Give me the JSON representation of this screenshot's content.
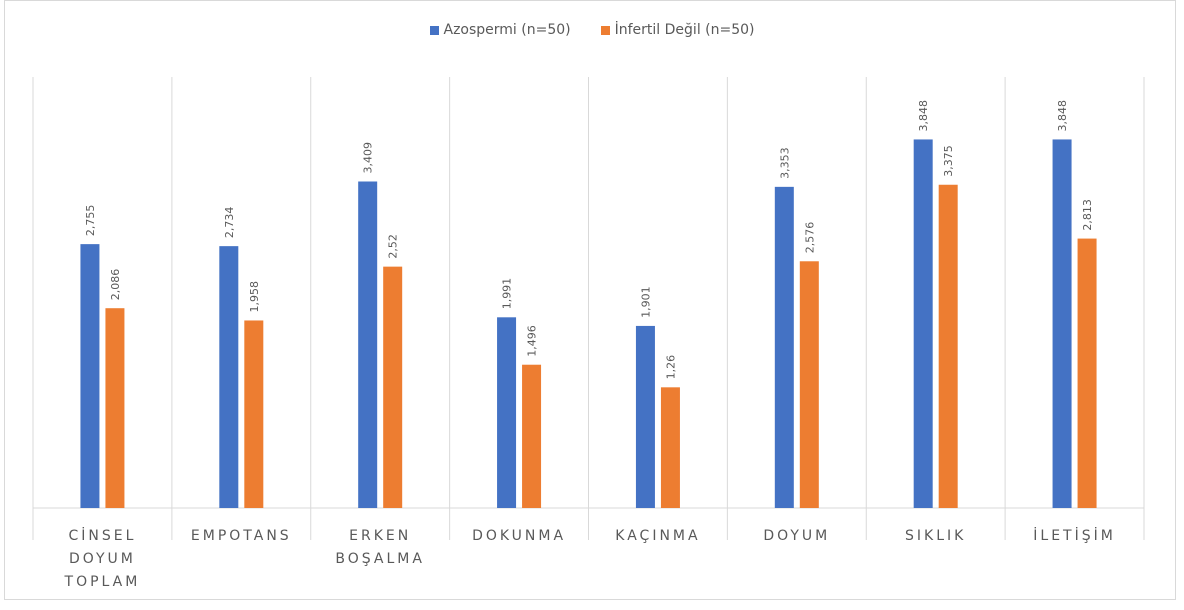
{
  "chart_data": {
    "type": "bar",
    "categories": [
      [
        "CİNSEL",
        "DOYUM",
        "TOPLAM"
      ],
      [
        "EMPOTANS"
      ],
      [
        "ERKEN",
        "BOŞALMA"
      ],
      [
        "DOKUNMA"
      ],
      [
        "KAÇINMA"
      ],
      [
        "DOYUM"
      ],
      [
        "SIKLIK"
      ],
      [
        "İLETİŞİM"
      ]
    ],
    "series": [
      {
        "name": "Azospermi (n=50)",
        "color": "#4472C4",
        "values": [
          2.755,
          2.734,
          3.409,
          1.991,
          1.901,
          3.353,
          3.848,
          3.848
        ],
        "labels": [
          "2,755",
          "2,734",
          "3,409",
          "1,991",
          "1,901",
          "3,353",
          "3,848",
          "3,848"
        ]
      },
      {
        "name": "İnfertil Değil (n=50)",
        "color": "#ED7D31",
        "values": [
          2.086,
          1.958,
          2.52,
          1.496,
          1.26,
          2.576,
          3.375,
          2.813
        ],
        "labels": [
          "2,086",
          "1,958",
          "2,52",
          "1,496",
          "1,26",
          "2,576",
          "3,375",
          "2,813"
        ]
      }
    ],
    "ylim": [
      0,
      4.5
    ],
    "legend_position": "top",
    "grid": "vertical category separators"
  }
}
